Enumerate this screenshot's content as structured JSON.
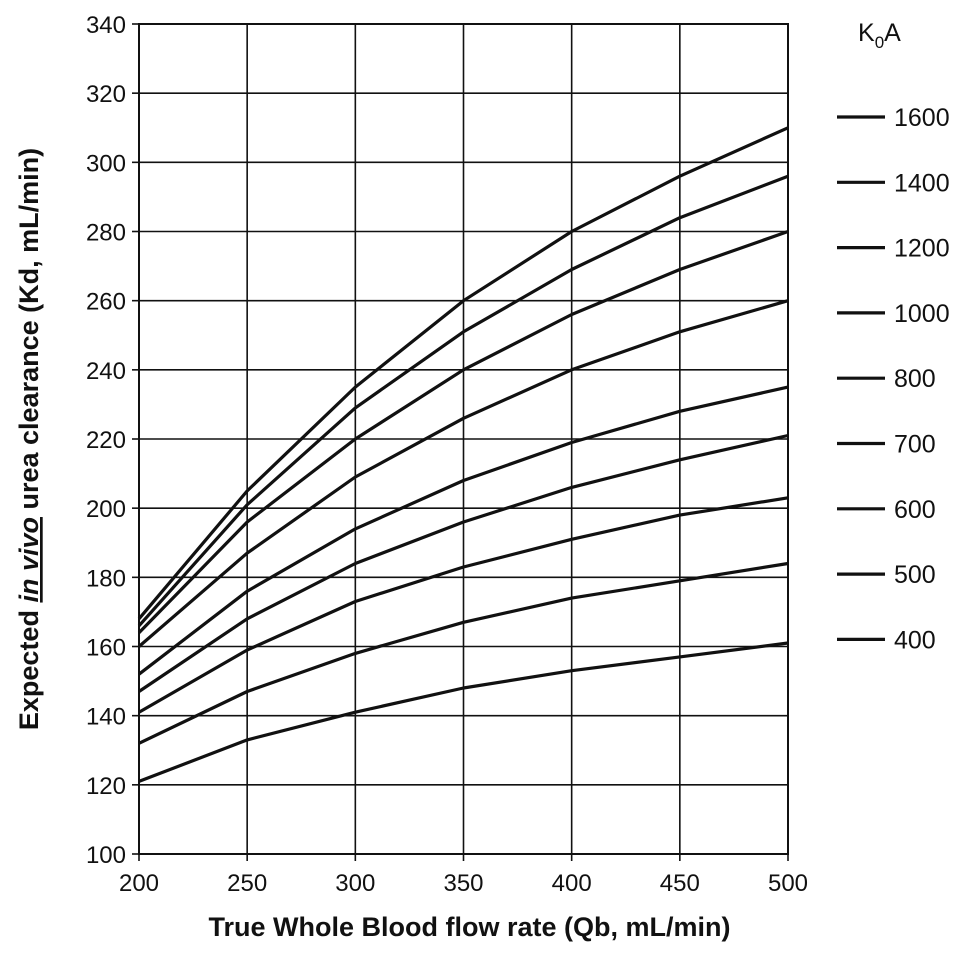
{
  "chart_data": {
    "type": "line",
    "xlabel": "True Whole Blood flow rate (Qb, mL/min)",
    "ylabel_parts": [
      "Expected ",
      "in vivo",
      " urea clearance (Kd, mL/min)"
    ],
    "xlim": [
      200,
      500
    ],
    "ylim": [
      100,
      340
    ],
    "x_ticks": [
      200,
      250,
      300,
      350,
      400,
      450,
      500
    ],
    "y_ticks": [
      100,
      120,
      140,
      160,
      180,
      200,
      220,
      240,
      260,
      280,
      300,
      320,
      340
    ],
    "grid": true,
    "legend_title_main": "K",
    "legend_title_sub": "0",
    "legend_title_tail": "A",
    "legend_position": "right",
    "x": [
      200,
      250,
      300,
      350,
      400,
      450,
      500
    ],
    "series": [
      {
        "name": "1600",
        "values": [
          168,
          205,
          235,
          260,
          280,
          296,
          310
        ]
      },
      {
        "name": "1400",
        "values": [
          166,
          201,
          229,
          251,
          269,
          284,
          296
        ]
      },
      {
        "name": "1200",
        "values": [
          164,
          196,
          220,
          240,
          256,
          269,
          280
        ]
      },
      {
        "name": "1000",
        "values": [
          160,
          187,
          209,
          226,
          240,
          251,
          260
        ]
      },
      {
        "name": "800",
        "values": [
          152,
          176,
          194,
          208,
          219,
          228,
          235
        ]
      },
      {
        "name": "700",
        "values": [
          147,
          168,
          184,
          196,
          206,
          214,
          221
        ]
      },
      {
        "name": "600",
        "values": [
          141,
          159,
          173,
          183,
          191,
          198,
          203
        ]
      },
      {
        "name": "500",
        "values": [
          132,
          147,
          158,
          167,
          174,
          179,
          184
        ]
      },
      {
        "name": "400",
        "values": [
          121,
          133,
          141,
          148,
          153,
          157,
          161
        ]
      }
    ]
  }
}
